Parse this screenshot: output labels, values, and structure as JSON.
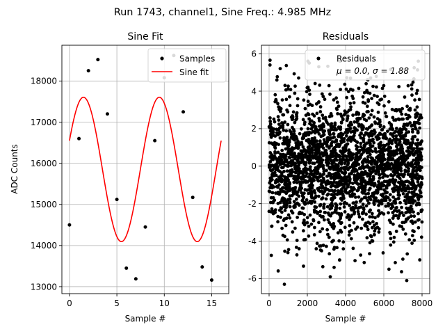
{
  "figure": {
    "suptitle": "Run 1743, channel1, Sine Freq.: 4.985 MHz"
  },
  "chart_data": [
    {
      "type": "line",
      "title": "Sine Fit",
      "xlabel": "Sample #",
      "ylabel": "ADC Counts",
      "xlim": [
        -0.8,
        16.8
      ],
      "ylim": [
        12830,
        18870
      ],
      "xticks": [
        0,
        5,
        10,
        15
      ],
      "yticks": [
        13000,
        14000,
        15000,
        16000,
        17000,
        18000
      ],
      "grid": true,
      "legend": {
        "position": "top-right",
        "entries": [
          "Samples",
          "Sine fit"
        ]
      },
      "series": [
        {
          "name": "Samples",
          "style": "scatter",
          "color": "#000000",
          "x": [
            0,
            1,
            2,
            3,
            4,
            5,
            6,
            7,
            8,
            9,
            10,
            11,
            12,
            13,
            14,
            15
          ],
          "y": [
            14500,
            16600,
            18250,
            18520,
            17200,
            15120,
            13450,
            13190,
            14450,
            16550,
            18080,
            18620,
            17250,
            15170,
            13480,
            13160
          ]
        },
        {
          "name": "Sine fit",
          "style": "line",
          "color": "#ff0000",
          "function": {
            "kind": "sine",
            "offset": 15850,
            "amplitude": 1755,
            "period": 8.0,
            "phase_rad": 0.4103,
            "x_range": [
              0,
              16
            ]
          }
        }
      ]
    },
    {
      "type": "scatter",
      "title": "Residuals",
      "xlabel": "Sample #",
      "ylabel": "",
      "xlim": [
        -400,
        8400
      ],
      "ylim": [
        -6.8,
        6.45
      ],
      "xticks": [
        0,
        2000,
        4000,
        6000,
        8000
      ],
      "yticks": [
        -6,
        -4,
        -2,
        0,
        2,
        4,
        6
      ],
      "grid": true,
      "legend": {
        "position": "top-right",
        "entries": [
          "Residuals"
        ]
      },
      "annotation": "μ = 0.0, σ = 1.88",
      "series": [
        {
          "name": "Residuals",
          "color": "#000000",
          "distribution": {
            "n": 8000,
            "x_range": [
              0,
              8000
            ],
            "mean": 0.0,
            "std": 1.88
          },
          "outliers": [
            {
              "x": 50,
              "y": 5.65
            },
            {
              "x": 800,
              "y": -6.3
            },
            {
              "x": 2600,
              "y": 5.3
            },
            {
              "x": 7200,
              "y": -6.1
            },
            {
              "x": 2100,
              "y": 5.5
            },
            {
              "x": 3400,
              "y": -5.4
            }
          ]
        }
      ]
    }
  ]
}
